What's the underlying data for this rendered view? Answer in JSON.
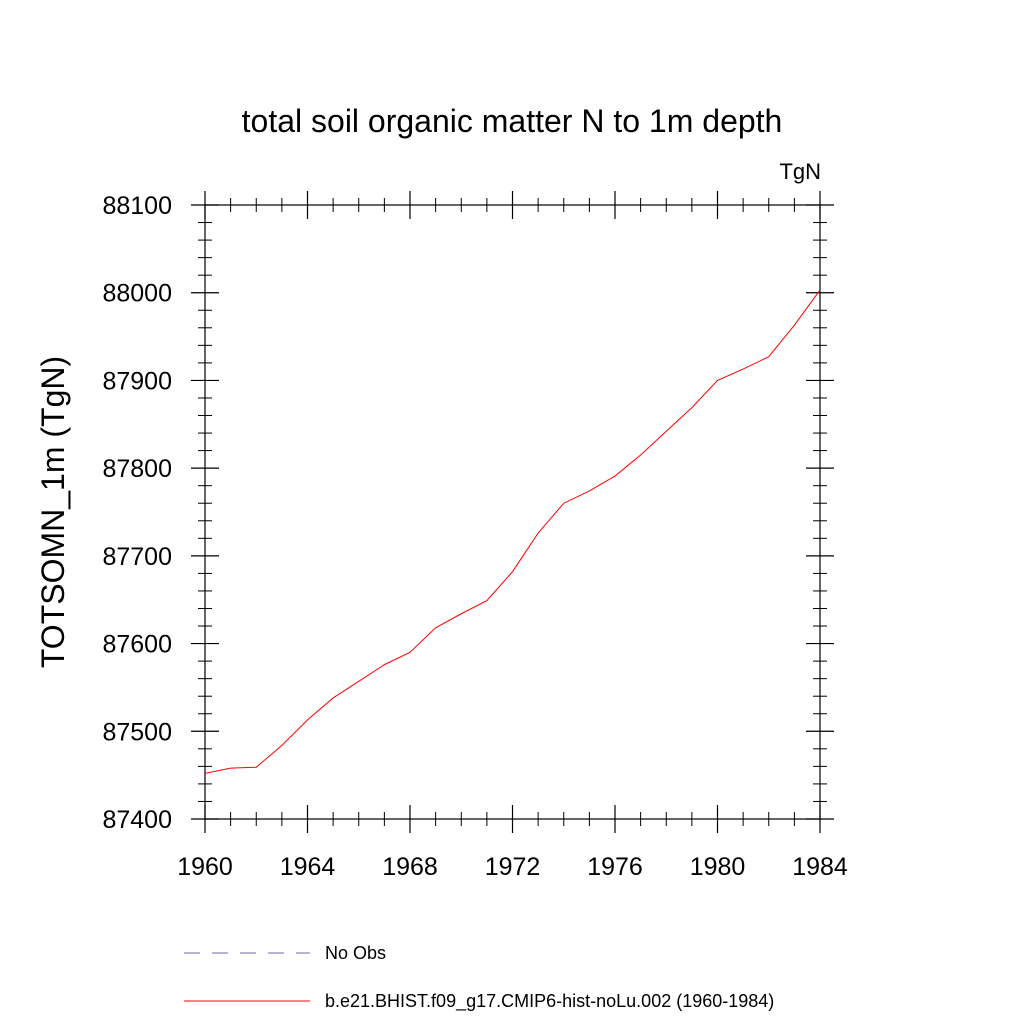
{
  "chart_data": {
    "type": "line",
    "title": "total soil organic matter N to 1m depth",
    "unit_label": "TgN",
    "ylabel": "TOTSOMN_1m  (TgN)",
    "xlabel": "",
    "xlim": [
      1960,
      1984
    ],
    "ylim": [
      87400,
      88100
    ],
    "x_ticks": [
      1960,
      1964,
      1968,
      1972,
      1976,
      1980,
      1984
    ],
    "y_ticks": [
      87400,
      87500,
      87600,
      87700,
      87800,
      87900,
      88000,
      88100
    ],
    "x_minor_step": 1,
    "y_minor_step": 20,
    "grid": false,
    "legend_position": "bottom",
    "series": [
      {
        "name": "b.e21.BHIST.f09_g17.CMIP6-hist-noLu.002 (1960-1984)",
        "color": "#ff0000",
        "dash": "solid",
        "x": [
          1960,
          1961,
          1962,
          1963,
          1964,
          1965,
          1966,
          1967,
          1968,
          1969,
          1970,
          1971,
          1972,
          1973,
          1974,
          1975,
          1976,
          1977,
          1978,
          1979,
          1980,
          1981,
          1982,
          1983,
          1984
        ],
        "y": [
          87452,
          87458,
          87459,
          87484,
          87513,
          87538,
          87557,
          87576,
          87590,
          87618,
          87634,
          87649,
          87682,
          87726,
          87760,
          87774,
          87791,
          87815,
          87842,
          87869,
          87900,
          87913,
          87927,
          87963,
          88003
        ]
      }
    ],
    "legend": [
      {
        "label": "No Obs",
        "color": "#6a6aaa",
        "dash": "dashed"
      },
      {
        "label": "b.e21.BHIST.f09_g17.CMIP6-hist-noLu.002 (1960-1984)",
        "color": "#ff0000",
        "dash": "solid"
      }
    ]
  }
}
